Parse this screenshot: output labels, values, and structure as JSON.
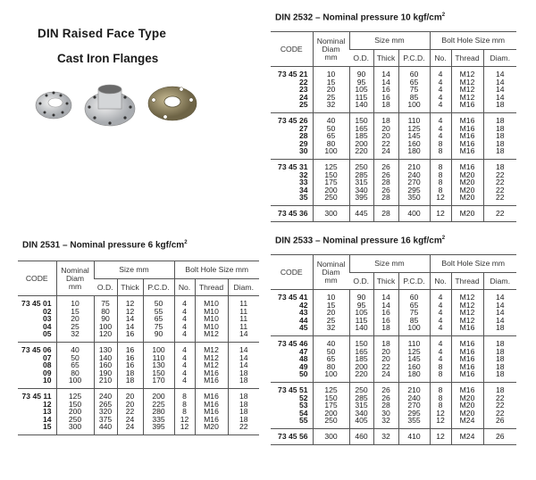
{
  "header": {
    "title": "DIN  Raised  Face  Type",
    "subtitle": "Cast Iron Flanges"
  },
  "columns": {
    "code": "CODE",
    "nominal": [
      "Nominal",
      "Diam",
      "mm"
    ],
    "size": "Size mm",
    "bolt": "Bolt Hole Size mm",
    "od": "O.D.",
    "thick": "Thick",
    "pcd": "P.C.D.",
    "no": "No.",
    "thread": "Thread",
    "diam": "Diam."
  },
  "tables": [
    {
      "title": "DIN 2532 – Nominal pressure  10 kgf/cm",
      "sup": "2",
      "groups": [
        [
          [
            "73 45 21",
            "10",
            "90",
            "14",
            "60",
            "4",
            "M12",
            "14"
          ],
          [
            "22",
            "15",
            "95",
            "14",
            "65",
            "4",
            "M12",
            "14"
          ],
          [
            "23",
            "20",
            "105",
            "16",
            "75",
            "4",
            "M12",
            "14"
          ],
          [
            "24",
            "25",
            "115",
            "16",
            "85",
            "4",
            "M12",
            "14"
          ],
          [
            "25",
            "32",
            "140",
            "18",
            "100",
            "4",
            "M16",
            "18"
          ]
        ],
        [
          [
            "73 45 26",
            "40",
            "150",
            "18",
            "110",
            "4",
            "M16",
            "18"
          ],
          [
            "27",
            "50",
            "165",
            "20",
            "125",
            "4",
            "M16",
            "18"
          ],
          [
            "28",
            "65",
            "185",
            "20",
            "145",
            "4",
            "M16",
            "18"
          ],
          [
            "29",
            "80",
            "200",
            "22",
            "160",
            "8",
            "M16",
            "18"
          ],
          [
            "30",
            "100",
            "220",
            "24",
            "180",
            "8",
            "M16",
            "18"
          ]
        ],
        [
          [
            "73 45 31",
            "125",
            "250",
            "26",
            "210",
            "8",
            "M16",
            "18"
          ],
          [
            "32",
            "150",
            "285",
            "26",
            "240",
            "8",
            "M20",
            "22"
          ],
          [
            "33",
            "175",
            "315",
            "28",
            "270",
            "8",
            "M20",
            "22"
          ],
          [
            "34",
            "200",
            "340",
            "26",
            "295",
            "8",
            "M20",
            "22"
          ],
          [
            "35",
            "250",
            "395",
            "28",
            "350",
            "12",
            "M20",
            "22"
          ]
        ],
        [
          [
            "73 45 36",
            "300",
            "445",
            "28",
            "400",
            "12",
            "M20",
            "22"
          ]
        ]
      ]
    },
    {
      "title": "DIN 2531 – Nominal pressure  6 kgf/cm",
      "sup": "2",
      "groups": [
        [
          [
            "73 45 01",
            "10",
            "75",
            "12",
            "50",
            "4",
            "M10",
            "11"
          ],
          [
            "02",
            "15",
            "80",
            "12",
            "55",
            "4",
            "M10",
            "11"
          ],
          [
            "03",
            "20",
            "90",
            "14",
            "65",
            "4",
            "M10",
            "11"
          ],
          [
            "04",
            "25",
            "100",
            "14",
            "75",
            "4",
            "M10",
            "11"
          ],
          [
            "05",
            "32",
            "120",
            "16",
            "90",
            "4",
            "M12",
            "14"
          ]
        ],
        [
          [
            "73 45 06",
            "40",
            "130",
            "16",
            "100",
            "4",
            "M12",
            "14"
          ],
          [
            "07",
            "50",
            "140",
            "16",
            "110",
            "4",
            "M12",
            "14"
          ],
          [
            "08",
            "65",
            "160",
            "16",
            "130",
            "4",
            "M12",
            "14"
          ],
          [
            "09",
            "80",
            "190",
            "18",
            "150",
            "4",
            "M16",
            "18"
          ],
          [
            "10",
            "100",
            "210",
            "18",
            "170",
            "4",
            "M16",
            "18"
          ]
        ],
        [
          [
            "73 45 11",
            "125",
            "240",
            "20",
            "200",
            "8",
            "M16",
            "18"
          ],
          [
            "12",
            "150",
            "265",
            "20",
            "225",
            "8",
            "M16",
            "18"
          ],
          [
            "13",
            "200",
            "320",
            "22",
            "280",
            "8",
            "M16",
            "18"
          ],
          [
            "14",
            "250",
            "375",
            "24",
            "335",
            "12",
            "M16",
            "18"
          ],
          [
            "15",
            "300",
            "440",
            "24",
            "395",
            "12",
            "M20",
            "22"
          ]
        ]
      ]
    },
    {
      "title": "DIN 2533 – Nominal pressure  16 kgf/cm",
      "sup": "2",
      "groups": [
        [
          [
            "73 45 41",
            "10",
            "90",
            "14",
            "60",
            "4",
            "M12",
            "14"
          ],
          [
            "42",
            "15",
            "95",
            "14",
            "65",
            "4",
            "M12",
            "14"
          ],
          [
            "43",
            "20",
            "105",
            "16",
            "75",
            "4",
            "M12",
            "14"
          ],
          [
            "44",
            "25",
            "115",
            "16",
            "85",
            "4",
            "M12",
            "14"
          ],
          [
            "45",
            "32",
            "140",
            "18",
            "100",
            "4",
            "M16",
            "18"
          ]
        ],
        [
          [
            "73 45 46",
            "40",
            "150",
            "18",
            "110",
            "4",
            "M16",
            "18"
          ],
          [
            "47",
            "50",
            "165",
            "20",
            "125",
            "4",
            "M16",
            "18"
          ],
          [
            "48",
            "65",
            "185",
            "20",
            "145",
            "4",
            "M16",
            "18"
          ],
          [
            "49",
            "80",
            "200",
            "22",
            "160",
            "8",
            "M16",
            "18"
          ],
          [
            "50",
            "100",
            "220",
            "24",
            "180",
            "8",
            "M16",
            "18"
          ]
        ],
        [
          [
            "73 45 51",
            "125",
            "250",
            "26",
            "210",
            "8",
            "M16",
            "18"
          ],
          [
            "52",
            "150",
            "285",
            "26",
            "240",
            "8",
            "M20",
            "22"
          ],
          [
            "53",
            "175",
            "315",
            "28",
            "270",
            "8",
            "M20",
            "22"
          ],
          [
            "54",
            "200",
            "340",
            "30",
            "295",
            "12",
            "M20",
            "22"
          ],
          [
            "55",
            "250",
            "405",
            "32",
            "355",
            "12",
            "M24",
            "26"
          ]
        ],
        [
          [
            "73 45 56",
            "300",
            "460",
            "32",
            "410",
            "12",
            "M24",
            "26"
          ]
        ]
      ]
    }
  ]
}
